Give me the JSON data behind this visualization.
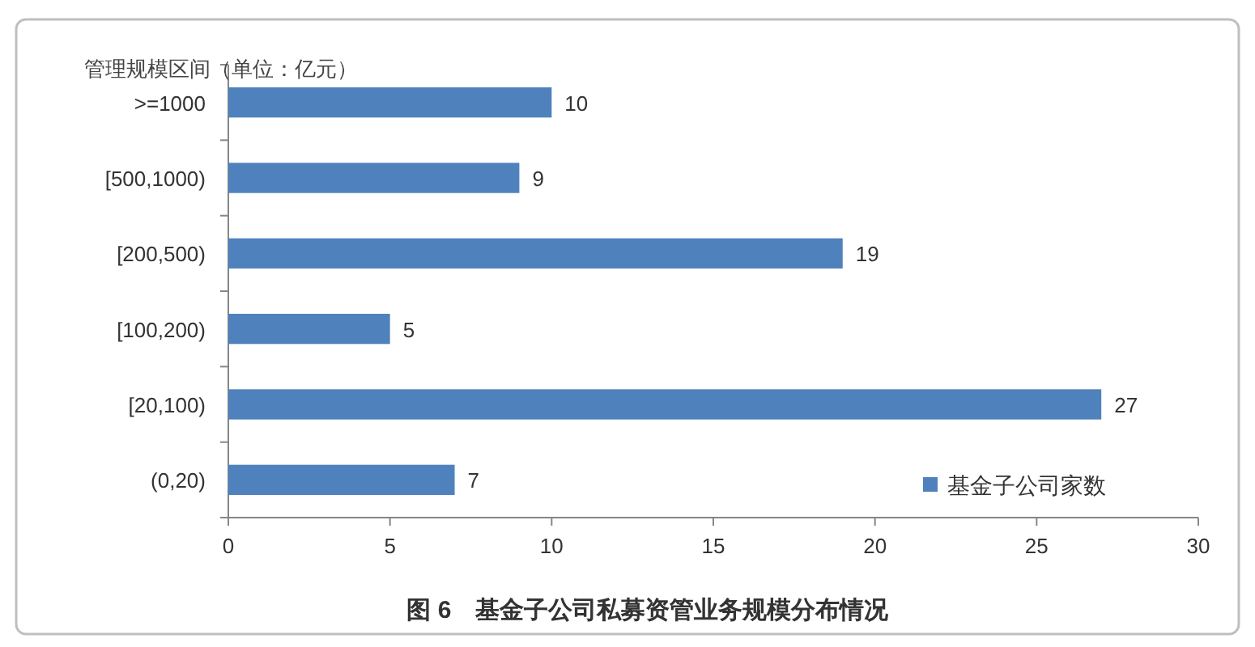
{
  "chart_data": {
    "type": "bar",
    "orientation": "horizontal",
    "title": "图 6　基金子公司私募资管业务规模分布情况",
    "ylabel": "管理规模区间（单位：亿元）",
    "categories": [
      ">=1000",
      "[500,1000)",
      "[200,500)",
      "[100,200)",
      "[20,100)",
      "(0,20)"
    ],
    "series": [
      {
        "name": "基金子公司家数",
        "color": "#4f81bd",
        "values": [
          10,
          9,
          19,
          5,
          27,
          7
        ]
      }
    ],
    "xlim": [
      0,
      30
    ],
    "xticks": [
      0,
      5,
      10,
      15,
      20,
      25,
      30
    ],
    "data_labels": true,
    "legend": "bottom right",
    "grid": false
  }
}
